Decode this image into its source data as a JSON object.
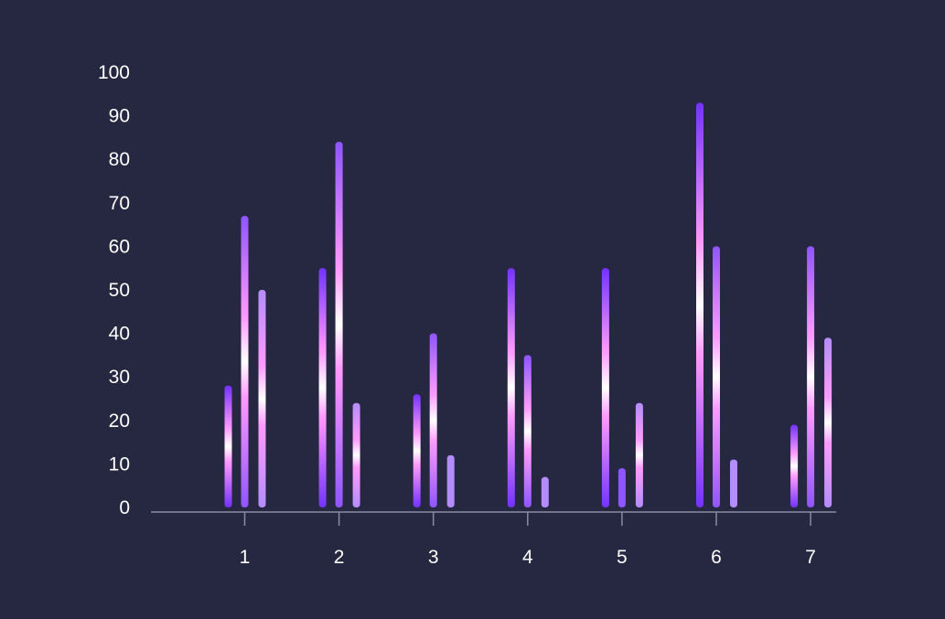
{
  "colors": {
    "background": "#262741",
    "axis": "#8a8aa3",
    "series": [
      "#7332ff",
      "#8f55ff",
      "#b48cff"
    ],
    "highlight": "#ff9aff"
  },
  "chart_data": {
    "type": "bar",
    "title": "",
    "xlabel": "",
    "ylabel": "",
    "categories": [
      "1",
      "2",
      "3",
      "4",
      "5",
      "6",
      "7"
    ],
    "ylim": [
      0,
      100
    ],
    "yticks": [
      0,
      10,
      20,
      30,
      40,
      50,
      60,
      70,
      80,
      90,
      100
    ],
    "grid": false,
    "legend": "none",
    "series": [
      {
        "values": [
          28,
          55,
          26,
          55,
          55,
          93,
          19
        ]
      },
      {
        "values": [
          67,
          84,
          40,
          35,
          9,
          60,
          60
        ]
      },
      {
        "values": [
          50,
          24,
          12,
          7,
          24,
          11,
          39
        ]
      }
    ]
  }
}
